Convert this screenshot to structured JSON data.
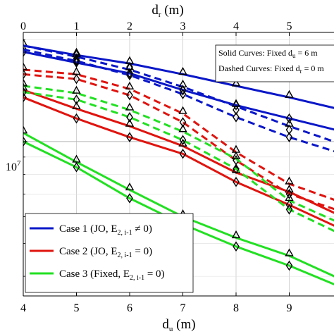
{
  "chart_data": {
    "type": "line",
    "top_axis": {
      "label_main": "d",
      "label_sub": "r",
      "label_unit": " (m)",
      "ticks": [
        0,
        1,
        2,
        3,
        4,
        5
      ],
      "range": [
        0,
        6
      ]
    },
    "bottom_axis": {
      "label_main": "d",
      "label_sub": "u",
      "label_unit": " (m)",
      "ticks": [
        4,
        5,
        6,
        7,
        8,
        9
      ],
      "range": [
        4,
        10
      ]
    },
    "y_axis": {
      "scale": "log",
      "tick_label_main": "10",
      "tick_label_exp": "7",
      "tick_value": 10000000,
      "range": [
        3500000,
        21000000
      ]
    },
    "grid": true,
    "note": {
      "line1_prefix": "Solid Curves: Fixed d",
      "line1_sub": "u",
      "line1_suffix": " = 6 m",
      "line2_prefix": "Dashed Curves: Fixed d",
      "line2_sub": "r",
      "line2_suffix": " = 0 m"
    },
    "legend": {
      "placement": "bottom-left",
      "entries": [
        {
          "label_main": "Case 1 (JO, E",
          "label_sub": "2, i-1",
          "label_tail": " ≠ 0)",
          "color": "#0a17c8"
        },
        {
          "label_main": "Case 2 (JO, E",
          "label_sub": "2, i-1",
          "label_tail": " = 0)",
          "color": "#e0140f"
        },
        {
          "label_main": "Case 3 (Fixed, E",
          "label_sub": "2, i-1",
          "label_tail": " = 0)",
          "color": "#22e022"
        }
      ]
    },
    "series": [
      {
        "case": 1,
        "style": "solid",
        "color": "#0a17c8",
        "x_axis": "bottom",
        "x": [
          4,
          5,
          6,
          7,
          8,
          9,
          10
        ],
        "markers": [
          "both",
          "both",
          "both",
          "triangle",
          "triangle",
          "triangle",
          "none"
        ],
        "values": [
          19200000,
          18000000,
          17000000,
          15800000,
          14600000,
          13500000,
          12400000
        ]
      },
      {
        "case": 1,
        "style": "solid",
        "color": "#0a17c8",
        "x_axis": "bottom",
        "x": [
          4,
          5,
          6,
          7,
          8,
          9,
          10
        ],
        "markers": [
          "diamond",
          "diamond",
          "diamond",
          "diamond",
          "diamond",
          "diamond",
          "none"
        ],
        "values": [
          18400000,
          17100000,
          15900000,
          14200000,
          12800000,
          11700000,
          10700000
        ]
      },
      {
        "case": 1,
        "style": "dashed",
        "color": "#0a17c8",
        "x_axis": "top",
        "x": [
          0,
          1,
          2,
          3,
          4,
          5,
          6
        ],
        "markers": [
          "none",
          "both",
          "both",
          "both",
          "both",
          "both",
          "none"
        ],
        "values": [
          19200000,
          17800000,
          16300000,
          14500000,
          12700000,
          11100000,
          9800000
        ]
      },
      {
        "case": 1,
        "style": "dashed",
        "color": "#0a17c8",
        "x_axis": "top",
        "x": [
          0,
          1,
          2,
          3,
          4,
          5,
          6
        ],
        "markers": [
          "none",
          "diamond",
          "diamond",
          "diamond",
          "diamond",
          "diamond",
          "none"
        ],
        "values": [
          18700000,
          17300000,
          15700000,
          13800000,
          11800000,
          10300000,
          9200000
        ]
      },
      {
        "case": 2,
        "style": "solid",
        "color": "#e0140f",
        "x_axis": "bottom",
        "x": [
          4,
          5,
          6,
          7,
          8,
          9,
          10
        ],
        "markers": [
          "triangle",
          "triangle",
          "triangle",
          "triangle",
          "triangle",
          "triangle",
          "none"
        ],
        "values": [
          14200000,
          12500000,
          11100000,
          9700000,
          8100000,
          7100000,
          6000000
        ]
      },
      {
        "case": 2,
        "style": "solid",
        "color": "#e0140f",
        "x_axis": "bottom",
        "x": [
          4,
          5,
          6,
          7,
          8,
          9,
          10
        ],
        "markers": [
          "diamond",
          "diamond",
          "diamond",
          "diamond",
          "diamond",
          "diamond",
          "none"
        ],
        "values": [
          13500000,
          11700000,
          10300000,
          9200000,
          7600000,
          6500000,
          5500000
        ]
      },
      {
        "case": 2,
        "style": "dashed",
        "color": "#e0140f",
        "x_axis": "top",
        "x": [
          0,
          1,
          2,
          3,
          4,
          5,
          6
        ],
        "markers": [
          "triangle",
          "triangle",
          "triangle",
          "triangle",
          "triangle",
          "triangle",
          "none"
        ],
        "values": [
          16300000,
          15800000,
          14300000,
          12100000,
          9300000,
          7500000,
          6600000
        ]
      },
      {
        "case": 2,
        "style": "dashed",
        "color": "#e0140f",
        "x_axis": "top",
        "x": [
          0,
          1,
          2,
          3,
          4,
          5,
          6
        ],
        "markers": [
          "diamond",
          "diamond",
          "diamond",
          "diamond",
          "diamond",
          "diamond",
          "none"
        ],
        "values": [
          15800000,
          15300000,
          13700000,
          11400000,
          8800000,
          7000000,
          6200000
        ]
      },
      {
        "case": 3,
        "style": "solid",
        "color": "#22e022",
        "x_axis": "bottom",
        "x": [
          4,
          5,
          6,
          7,
          8,
          9,
          10
        ],
        "markers": [
          "triangle",
          "triangle",
          "triangle",
          "triangle",
          "triangle",
          "triangle",
          "none"
        ],
        "values": [
          10600000,
          8700000,
          7200000,
          6000000,
          5200000,
          4600000,
          3900000
        ]
      },
      {
        "case": 3,
        "style": "solid",
        "color": "#22e022",
        "x_axis": "bottom",
        "x": [
          4,
          5,
          6,
          7,
          8,
          9,
          10
        ],
        "markers": [
          "diamond",
          "diamond",
          "diamond",
          "diamond",
          "diamond",
          "diamond",
          "none"
        ],
        "values": [
          10000000,
          8400000,
          6800000,
          5700000,
          4900000,
          4300000,
          3700000
        ]
      },
      {
        "case": 3,
        "style": "dashed",
        "color": "#22e022",
        "x_axis": "top",
        "x": [
          0,
          1,
          2,
          3,
          4,
          5,
          6
        ],
        "markers": [
          "triangle",
          "triangle",
          "triangle",
          "triangle",
          "triangle",
          "triangle",
          "none"
        ],
        "values": [
          14600000,
          13900000,
          12400000,
          10700000,
          8900000,
          6700000,
          5700000
        ]
      },
      {
        "case": 3,
        "style": "dashed",
        "color": "#22e022",
        "x_axis": "top",
        "x": [
          0,
          1,
          2,
          3,
          4,
          5,
          6
        ],
        "markers": [
          "diamond",
          "diamond",
          "diamond",
          "diamond",
          "diamond",
          "diamond",
          "none"
        ],
        "values": [
          14000000,
          13300000,
          11800000,
          10100000,
          8300000,
          6300000,
          5300000
        ]
      }
    ]
  }
}
